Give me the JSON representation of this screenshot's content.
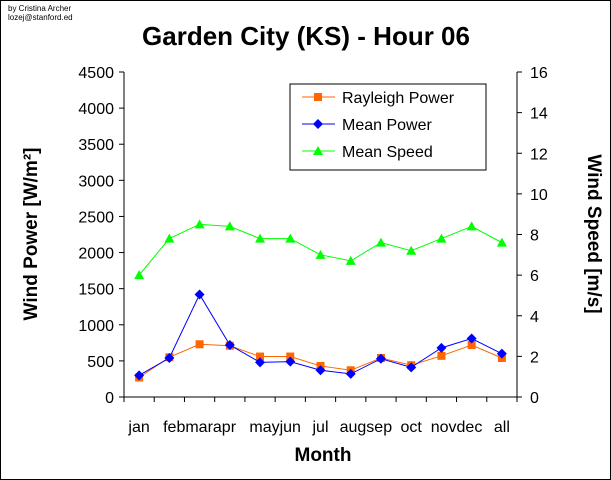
{
  "credit": {
    "line1": "by Cristina Archer",
    "line2": "lozej@stanford.ed"
  },
  "chart_data": {
    "type": "line",
    "title": "Garden City (KS) - Hour 06",
    "xlabel": "Month",
    "ylabel_left": "Wind Power [W/m²]",
    "ylabel_right": "Wind Speed [m/s]",
    "categories": [
      "jan",
      "feb",
      "mar",
      "apr",
      "may",
      "jun",
      "jul",
      "aug",
      "sep",
      "oct",
      "nov",
      "dec",
      "all"
    ],
    "category_label_groups": [
      "jan",
      "febmarapr",
      "mayjun",
      "jul",
      "augsep",
      "oct",
      "novdec",
      "all"
    ],
    "ylim_left": [
      0,
      4500
    ],
    "ylim_right": [
      0,
      16
    ],
    "yticks_left": [
      "0",
      "500",
      "1000",
      "1500",
      "2000",
      "2500",
      "3000",
      "3500",
      "4000",
      "4500"
    ],
    "yticks_right": [
      "0",
      "2",
      "4",
      "6",
      "8",
      "10",
      "12",
      "14",
      "16"
    ],
    "grid": false,
    "legend_position": "top-right",
    "series": [
      {
        "name": "Rayleigh Power",
        "axis": "left",
        "color": "#ff6600",
        "marker": "square",
        "values": [
          270,
          550,
          730,
          710,
          560,
          560,
          430,
          370,
          540,
          440,
          570,
          720,
          540
        ]
      },
      {
        "name": "Mean Power",
        "axis": "left",
        "color": "#0000ff",
        "marker": "diamond",
        "values": [
          300,
          540,
          1420,
          720,
          480,
          490,
          370,
          320,
          530,
          410,
          680,
          810,
          600
        ]
      },
      {
        "name": "Mean Speed",
        "axis": "right",
        "color": "#00ff00",
        "marker": "triangle",
        "values": [
          6.0,
          7.8,
          8.5,
          8.4,
          7.8,
          7.8,
          7.0,
          6.7,
          7.6,
          7.2,
          7.8,
          8.4,
          7.6
        ]
      }
    ]
  }
}
